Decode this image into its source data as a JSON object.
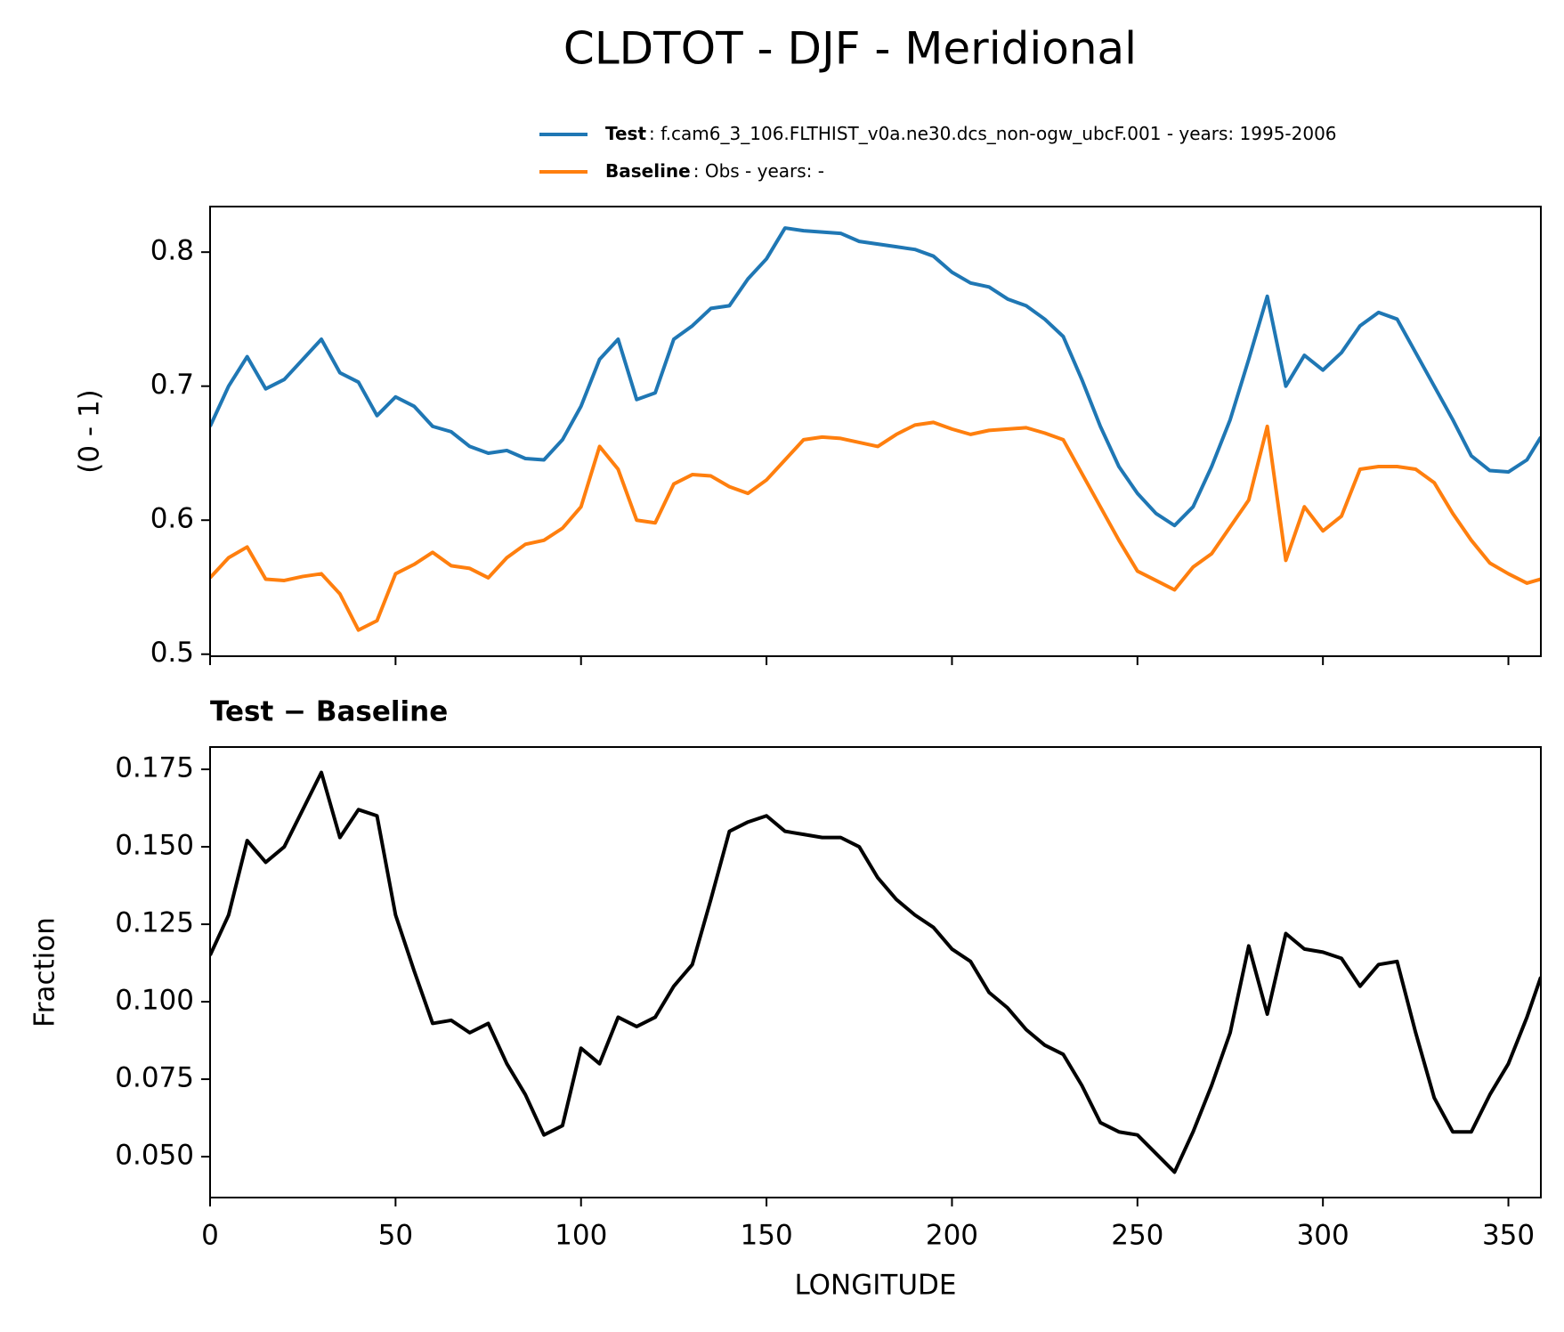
{
  "chart_data": [
    {
      "type": "line",
      "title": "CLDTOT - DJF - Meridional",
      "ylabel": "(0 - 1)",
      "x": [
        0,
        5,
        10,
        15,
        20,
        25,
        30,
        35,
        40,
        45,
        50,
        55,
        60,
        65,
        70,
        75,
        80,
        85,
        90,
        95,
        100,
        105,
        110,
        115,
        120,
        125,
        130,
        135,
        140,
        145,
        150,
        155,
        160,
        165,
        170,
        175,
        180,
        185,
        190,
        195,
        200,
        205,
        210,
        215,
        220,
        225,
        230,
        235,
        240,
        245,
        250,
        255,
        260,
        265,
        270,
        275,
        280,
        285,
        290,
        295,
        300,
        305,
        310,
        315,
        320,
        325,
        330,
        335,
        340,
        345,
        350,
        355,
        358.75
      ],
      "series": [
        {
          "name": "Test",
          "description": ": f.cam6_3_106.FLTHIST_v0a.ne30.dcs_non-ogw_ubcF.001 - years: 1995-2006",
          "color": "#1f77b4",
          "values": [
            0.67,
            0.7,
            0.722,
            0.698,
            0.705,
            0.72,
            0.735,
            0.71,
            0.703,
            0.678,
            0.692,
            0.685,
            0.67,
            0.666,
            0.655,
            0.65,
            0.652,
            0.646,
            0.645,
            0.66,
            0.685,
            0.72,
            0.735,
            0.69,
            0.695,
            0.735,
            0.745,
            0.758,
            0.76,
            0.78,
            0.795,
            0.818,
            0.816,
            0.815,
            0.814,
            0.808,
            0.806,
            0.804,
            0.802,
            0.797,
            0.785,
            0.777,
            0.774,
            0.765,
            0.76,
            0.75,
            0.737,
            0.705,
            0.67,
            0.64,
            0.62,
            0.605,
            0.596,
            0.61,
            0.64,
            0.675,
            0.72,
            0.767,
            0.7,
            0.723,
            0.712,
            0.725,
            0.745,
            0.755,
            0.75,
            0.725,
            0.7,
            0.675,
            0.648,
            0.637,
            0.636,
            0.645,
            0.662
          ]
        },
        {
          "name": "Baseline",
          "description": ": Obs - years: -",
          "color": "#ff7f0e",
          "values": [
            0.557,
            0.572,
            0.58,
            0.556,
            0.555,
            0.558,
            0.56,
            0.545,
            0.518,
            0.525,
            0.56,
            0.567,
            0.576,
            0.566,
            0.564,
            0.557,
            0.572,
            0.582,
            0.585,
            0.594,
            0.61,
            0.655,
            0.638,
            0.6,
            0.598,
            0.627,
            0.634,
            0.633,
            0.625,
            0.62,
            0.63,
            0.645,
            0.66,
            0.662,
            0.661,
            0.658,
            0.655,
            0.664,
            0.671,
            0.673,
            0.668,
            0.664,
            0.667,
            0.668,
            0.669,
            0.665,
            0.66,
            0.635,
            0.61,
            0.585,
            0.562,
            0.555,
            0.548,
            0.565,
            0.575,
            0.595,
            0.615,
            0.67,
            0.57,
            0.61,
            0.592,
            0.603,
            0.638,
            0.64,
            0.64,
            0.638,
            0.628,
            0.605,
            0.585,
            0.568,
            0.56,
            0.553,
            0.556
          ]
        }
      ],
      "xlim": [
        0,
        358.75
      ],
      "xticks": [
        0,
        50,
        100,
        150,
        200,
        250,
        300,
        350
      ],
      "ylim": [
        0.4985,
        0.834
      ],
      "yticks": [
        0.5,
        0.6,
        0.7,
        0.8
      ]
    },
    {
      "type": "line",
      "title": "Test − Baseline",
      "xlabel": "LONGITUDE",
      "ylabel": "Fraction",
      "x": [
        0,
        5,
        10,
        15,
        20,
        25,
        30,
        35,
        40,
        45,
        50,
        55,
        60,
        65,
        70,
        75,
        80,
        85,
        90,
        95,
        100,
        105,
        110,
        115,
        120,
        125,
        130,
        135,
        140,
        145,
        150,
        155,
        160,
        165,
        170,
        175,
        180,
        185,
        190,
        195,
        200,
        205,
        210,
        215,
        220,
        225,
        230,
        235,
        240,
        245,
        250,
        255,
        260,
        265,
        270,
        275,
        280,
        285,
        290,
        295,
        300,
        305,
        310,
        315,
        320,
        325,
        330,
        335,
        340,
        345,
        350,
        355,
        358.75
      ],
      "series": [
        {
          "color": "#000000",
          "values": [
            0.115,
            0.128,
            0.152,
            0.145,
            0.15,
            0.162,
            0.174,
            0.153,
            0.162,
            0.16,
            0.128,
            0.11,
            0.093,
            0.094,
            0.09,
            0.093,
            0.08,
            0.07,
            0.057,
            0.06,
            0.085,
            0.08,
            0.095,
            0.092,
            0.095,
            0.105,
            0.112,
            0.133,
            0.155,
            0.158,
            0.16,
            0.155,
            0.154,
            0.153,
            0.153,
            0.15,
            0.14,
            0.133,
            0.128,
            0.124,
            0.117,
            0.113,
            0.103,
            0.098,
            0.091,
            0.086,
            0.083,
            0.073,
            0.061,
            0.058,
            0.057,
            0.051,
            0.045,
            0.058,
            0.073,
            0.09,
            0.118,
            0.096,
            0.122,
            0.117,
            0.116,
            0.114,
            0.105,
            0.112,
            0.113,
            0.09,
            0.069,
            0.058,
            0.058,
            0.07,
            0.08,
            0.095,
            0.108
          ]
        }
      ],
      "xlim": [
        0,
        358.75
      ],
      "xticks": [
        0,
        50,
        100,
        150,
        200,
        250,
        300,
        350
      ],
      "ylim": [
        0.0368,
        0.1822
      ],
      "yticks": [
        {
          "value": 0.05,
          "label": "0.050"
        },
        0.075,
        {
          "value": 0.1,
          "label": "0.100"
        },
        0.125,
        {
          "value": 0.15,
          "label": "0.150"
        },
        0.175
      ]
    }
  ]
}
